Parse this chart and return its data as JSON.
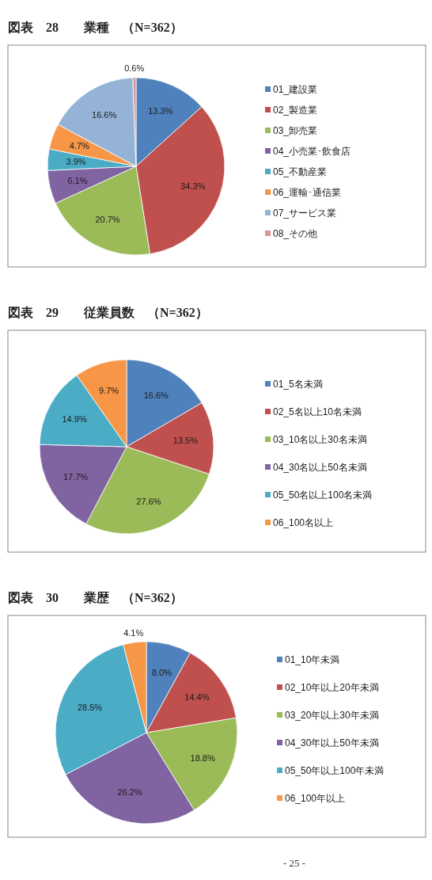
{
  "chart_data": [
    {
      "type": "pie",
      "title": "図表　28　　業種　（N=362）",
      "legend": "right",
      "categories": [
        "01_建設業",
        "02_製造業",
        "03_卸売業",
        "04_小売業･飲食店",
        "05_不動産業",
        "06_運輸･通信業",
        "07_サービス業",
        "08_その他"
      ],
      "values": [
        13.3,
        34.3,
        20.7,
        6.1,
        3.9,
        4.7,
        16.6,
        0.6
      ],
      "value_labels": [
        "13.3%",
        "34.3%",
        "20.7%",
        "6.1%",
        "3.9%",
        "4.7%",
        "16.6%",
        "0.6%"
      ],
      "colors": [
        "#4f81bd",
        "#c0504d",
        "#9bbb59",
        "#8064a2",
        "#4bacc6",
        "#f79646",
        "#95b3d7",
        "#d99694"
      ]
    },
    {
      "type": "pie",
      "title": "図表　29　　従業員数　（N=362）",
      "legend": "right",
      "categories": [
        "01_5名未満",
        "02_5名以上10名未満",
        "03_10名以上30名未満",
        "04_30名以上50名未満",
        "05_50名以上100名未満",
        "06_100名以上"
      ],
      "values": [
        16.6,
        13.5,
        27.6,
        17.7,
        14.9,
        9.7
      ],
      "value_labels": [
        "16.6%",
        "13.5%",
        "27.6%",
        "17.7%",
        "14.9%",
        "9.7%"
      ],
      "colors": [
        "#4f81bd",
        "#c0504d",
        "#9bbb59",
        "#8064a2",
        "#4bacc6",
        "#f79646"
      ]
    },
    {
      "type": "pie",
      "title": "図表　30　　業歴　（N=362）",
      "legend": "right",
      "categories": [
        "01_10年未満",
        "02_10年以上20年未満",
        "03_20年以上30年未満",
        "04_30年以上50年未満",
        "05_50年以上100年未満",
        "06_100年以上"
      ],
      "values": [
        8.0,
        14.4,
        18.8,
        26.2,
        28.5,
        4.1
      ],
      "value_labels": [
        "8.0%",
        "14.4%",
        "18.8%",
        "26.2%",
        "28.5%",
        "4.1%"
      ],
      "colors": [
        "#4f81bd",
        "#c0504d",
        "#9bbb59",
        "#8064a2",
        "#4bacc6",
        "#f79646"
      ],
      "annotations": [
        "- 25 -"
      ]
    }
  ]
}
